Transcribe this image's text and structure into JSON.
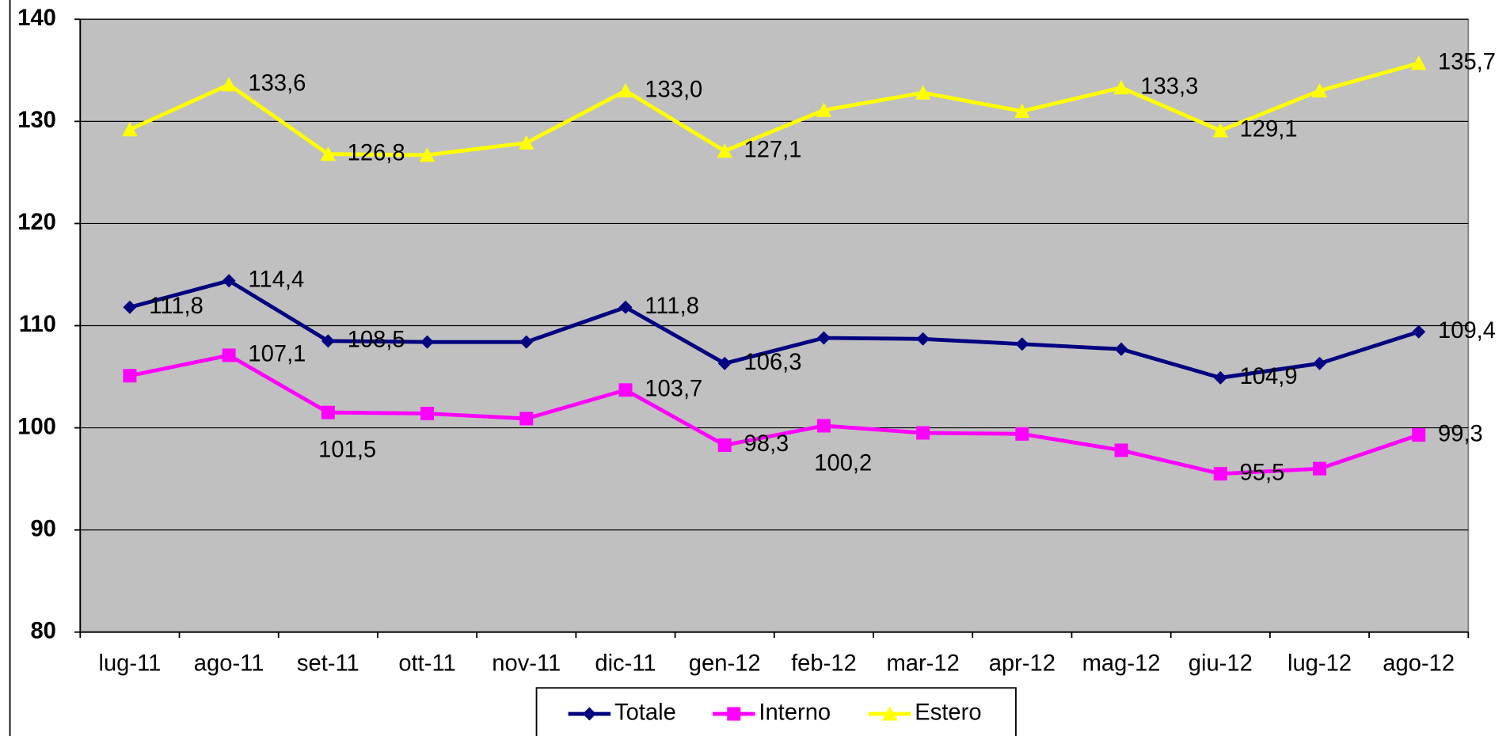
{
  "chart_data": {
    "type": "line",
    "categories": [
      "lug-11",
      "ago-11",
      "set-11",
      "ott-11",
      "nov-11",
      "dic-11",
      "gen-12",
      "feb-12",
      "mar-12",
      "apr-12",
      "mag-12",
      "giu-12",
      "lug-12",
      "ago-12"
    ],
    "series": [
      {
        "name": "Totale",
        "color": "#000080",
        "marker": "diamond",
        "values": [
          111.8,
          114.4,
          108.5,
          108.4,
          108.4,
          111.8,
          106.3,
          108.8,
          108.7,
          108.2,
          107.7,
          104.9,
          106.3,
          109.4
        ],
        "value_labels": [
          "111,8",
          "114,4",
          "108,5",
          null,
          null,
          "111,8",
          "106,3",
          null,
          null,
          null,
          null,
          "104,9",
          null,
          "109,4"
        ]
      },
      {
        "name": "Interno",
        "color": "#ff00ff",
        "marker": "square",
        "values": [
          105.1,
          107.1,
          101.5,
          101.4,
          100.9,
          103.7,
          98.3,
          100.2,
          99.5,
          99.4,
          97.8,
          95.5,
          96.0,
          99.3
        ],
        "value_labels": [
          null,
          "107,1",
          "101,5",
          null,
          null,
          "103,7",
          "98,3",
          "100,2",
          null,
          null,
          null,
          "95,5",
          null,
          "99,3"
        ]
      },
      {
        "name": "Estero",
        "color": "#ffff00",
        "marker": "triangle",
        "values": [
          129.2,
          133.6,
          126.8,
          126.7,
          127.9,
          133.0,
          127.1,
          131.1,
          132.8,
          131.0,
          133.3,
          129.1,
          133.0,
          135.7
        ],
        "value_labels": [
          null,
          "133,6",
          "126,8",
          null,
          null,
          "133,0",
          "127,1",
          null,
          null,
          null,
          "133,3",
          "129,1",
          null,
          "135,7"
        ]
      }
    ],
    "ylim": [
      80,
      140
    ],
    "yticks": [
      80,
      90,
      100,
      110,
      120,
      130,
      140
    ],
    "grid": true,
    "legend": "bottom"
  }
}
